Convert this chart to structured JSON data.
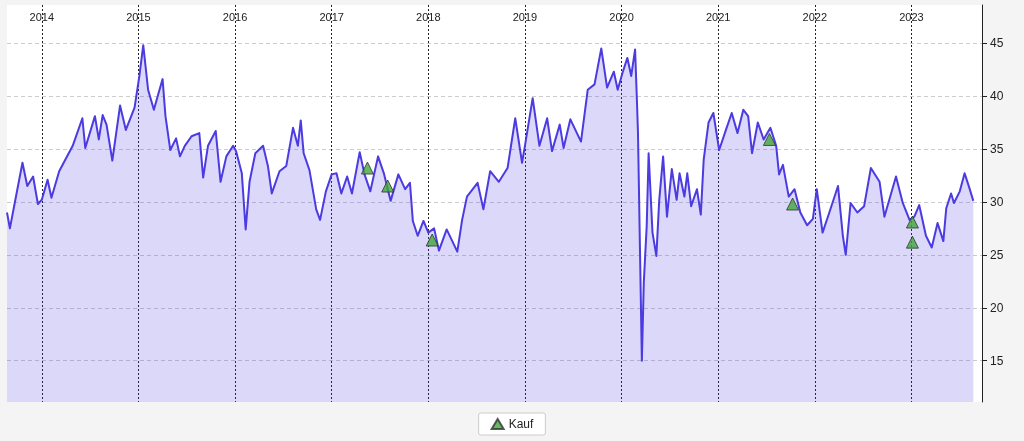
{
  "chart_data": {
    "type": "area",
    "xlim": [
      2013.64,
      2023.73
    ],
    "ylim": [
      11.1,
      48.6
    ],
    "xticks": [
      2014,
      2015,
      2016,
      2017,
      2018,
      2019,
      2020,
      2021,
      2022,
      2023
    ],
    "yticks": [
      15,
      20,
      25,
      30,
      35,
      40,
      45
    ],
    "grid": true,
    "legend": "bottom",
    "series": [
      {
        "color": "#4b3be0",
        "marker": "none",
        "x": [
          2013.64,
          2013.67,
          2013.72,
          2013.8,
          2013.85,
          2013.91,
          2013.96,
          2014.0,
          2014.06,
          2014.1,
          2014.18,
          2014.32,
          2014.42,
          2014.45,
          2014.55,
          2014.59,
          2014.63,
          2014.67,
          2014.73,
          2014.81,
          2014.87,
          2014.96,
          2015.01,
          2015.05,
          2015.1,
          2015.16,
          2015.2,
          2015.25,
          2015.28,
          2015.33,
          2015.39,
          2015.43,
          2015.48,
          2015.55,
          2015.63,
          2015.67,
          2015.72,
          2015.8,
          2015.85,
          2015.91,
          2015.98,
          2016.01,
          2016.07,
          2016.11,
          2016.15,
          2016.21,
          2016.29,
          2016.34,
          2016.38,
          2016.46,
          2016.53,
          2016.6,
          2016.65,
          2016.68,
          2016.71,
          2016.77,
          2016.84,
          2016.88,
          2016.94,
          2017.0,
          2017.05,
          2017.1,
          2017.16,
          2017.21,
          2017.29,
          2017.34,
          2017.4,
          2017.48,
          2017.54,
          2017.61,
          2017.69,
          2017.76,
          2017.81,
          2017.84,
          2017.89,
          2017.95,
          2018.0,
          2018.06,
          2018.11,
          2018.19,
          2018.3,
          2018.35,
          2018.4,
          2018.51,
          2018.57,
          2018.64,
          2018.73,
          2018.82,
          2018.9,
          2018.97,
          2019.0,
          2019.08,
          2019.15,
          2019.23,
          2019.28,
          2019.36,
          2019.4,
          2019.47,
          2019.58,
          2019.65,
          2019.72,
          2019.79,
          2019.85,
          2019.92,
          2019.96,
          2020.01,
          2020.06,
          2020.1,
          2020.14,
          2020.16,
          2020.17,
          2020.21,
          2020.23,
          2020.26,
          2020.28,
          2020.32,
          2020.36,
          2020.39,
          2020.43,
          2020.47,
          2020.52,
          2020.57,
          2020.6,
          2020.65,
          2020.68,
          2020.72,
          2020.78,
          2020.82,
          2020.85,
          2020.9,
          2020.95,
          2021.01,
          2021.08,
          2021.14,
          2021.2,
          2021.26,
          2021.31,
          2021.35,
          2021.41,
          2021.47,
          2021.54,
          2021.6,
          2021.63,
          2021.67,
          2021.73,
          2021.79,
          2021.85,
          2021.92,
          2021.98,
          2022.02,
          2022.08,
          2022.15,
          2022.24,
          2022.29,
          2022.32,
          2022.37,
          2022.44,
          2022.51,
          2022.58,
          2022.67,
          2022.72,
          2022.84,
          2022.91,
          2022.98,
          2023.03,
          2023.08,
          2023.15,
          2023.21,
          2023.27,
          2023.33,
          2023.36,
          2023.41,
          2023.44,
          2023.5,
          2023.55,
          2023.6,
          2023.64
        ],
        "values": [
          29.0,
          27.5,
          29.9,
          33.7,
          31.5,
          32.4,
          29.8,
          30.2,
          32.1,
          30.4,
          32.9,
          35.3,
          37.9,
          35.1,
          38.1,
          35.9,
          38.2,
          37.3,
          33.9,
          39.1,
          36.8,
          38.9,
          41.9,
          44.8,
          40.6,
          38.7,
          40.0,
          41.6,
          38.1,
          34.9,
          36.0,
          34.3,
          35.3,
          36.2,
          36.5,
          32.3,
          35.3,
          36.7,
          31.9,
          34.3,
          35.3,
          34.8,
          32.7,
          27.4,
          31.9,
          34.6,
          35.3,
          33.4,
          30.8,
          32.9,
          33.4,
          37.0,
          35.3,
          37.7,
          34.6,
          33.0,
          29.3,
          28.3,
          31.0,
          32.6,
          32.7,
          30.8,
          32.4,
          30.8,
          34.7,
          32.6,
          31.0,
          34.3,
          32.7,
          30.1,
          32.6,
          31.2,
          31.8,
          28.2,
          26.8,
          28.2,
          27.1,
          27.5,
          25.4,
          27.4,
          25.3,
          28.3,
          30.5,
          31.8,
          29.3,
          32.9,
          31.9,
          33.2,
          37.9,
          33.7,
          35.3,
          39.8,
          35.3,
          37.9,
          34.8,
          37.3,
          35.1,
          37.8,
          35.7,
          40.6,
          41.1,
          44.5,
          40.8,
          42.3,
          40.6,
          42.2,
          43.6,
          41.9,
          44.4,
          39.3,
          36.5,
          15.0,
          22.4,
          27.7,
          34.6,
          27.1,
          24.9,
          30.2,
          34.3,
          28.6,
          33.1,
          30.2,
          32.7,
          30.5,
          32.7,
          29.6,
          31.2,
          28.8,
          34.0,
          37.5,
          38.4,
          34.9,
          36.8,
          38.4,
          36.5,
          38.7,
          38.1,
          34.6,
          37.5,
          35.9,
          37.0,
          35.3,
          32.6,
          33.5,
          30.5,
          31.2,
          29.0,
          27.8,
          28.4,
          31.2,
          27.1,
          29.0,
          31.5,
          26.8,
          25.0,
          29.9,
          29.0,
          29.6,
          33.2,
          31.9,
          28.6,
          32.4,
          29.9,
          28.3,
          28.6,
          29.7,
          26.8,
          25.7,
          28.0,
          26.3,
          29.4,
          30.8,
          29.9,
          31.0,
          32.7,
          31.3,
          30.1
        ]
      },
      {
        "type": "scatter",
        "name": "Kauf",
        "color": "#3fa83a",
        "marker": "triangle",
        "x": [
          2017.37,
          2017.58,
          2018.04,
          2021.53,
          2021.77,
          2023.01,
          2023.01
        ],
        "values": [
          33.2,
          31.5,
          26.4,
          35.9,
          29.8,
          28.1,
          26.2
        ]
      }
    ]
  }
}
